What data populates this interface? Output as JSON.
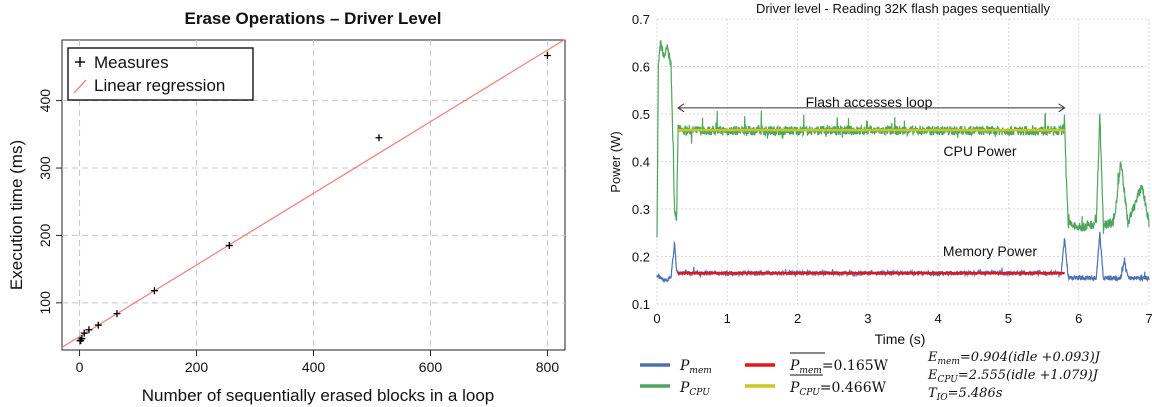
{
  "chart_data": [
    {
      "type": "scatter",
      "title": "Erase Operations – Driver Level",
      "xlabel": "Number of sequentially erased blocks in a loop",
      "ylabel": "Execution time (ms)",
      "xlim": [
        -30,
        830
      ],
      "ylim": [
        30,
        490
      ],
      "xticks": [
        0,
        200,
        400,
        600,
        800
      ],
      "yticks": [
        100,
        200,
        300,
        400
      ],
      "grid": true,
      "legend_position": "top-left",
      "series": [
        {
          "name": "Measures",
          "marker": "+",
          "color": "#000000",
          "x": [
            1,
            2,
            4,
            8,
            16,
            32,
            64,
            128,
            256,
            512,
            800
          ],
          "y": [
            44,
            44,
            47,
            55,
            60,
            67,
            84,
            118,
            185,
            345,
            467
          ]
        },
        {
          "name": "Linear regression",
          "type": "line",
          "color": "#f08080",
          "x": [
            -30,
            830
          ],
          "y": [
            34,
            491
          ]
        }
      ]
    },
    {
      "type": "line",
      "title": "Driver level - Reading 32K flash pages sequentially",
      "xlabel": "Time (s)",
      "ylabel": "Power (W)",
      "xlim": [
        0,
        7
      ],
      "ylim": [
        0.1,
        0.7
      ],
      "xticks": [
        0,
        1,
        2,
        3,
        4,
        5,
        6,
        7
      ],
      "yticks": [
        0.1,
        0.2,
        0.3,
        0.4,
        0.5,
        0.6,
        0.7
      ],
      "grid": true,
      "series": [
        {
          "name": "P_CPU",
          "color": "#4fa55f",
          "x": [
            0,
            0.02,
            0.05,
            0.1,
            0.15,
            0.2,
            0.25,
            0.28,
            0.3,
            0.35,
            1,
            2,
            3,
            4,
            5,
            5.75,
            5.8,
            5.85,
            6,
            6.25,
            6.3,
            6.35,
            6.5,
            6.6,
            6.7,
            6.9,
            7
          ],
          "y": [
            0.25,
            0.6,
            0.65,
            0.62,
            0.64,
            0.6,
            0.3,
            0.28,
            0.47,
            0.465,
            0.465,
            0.465,
            0.465,
            0.465,
            0.465,
            0.465,
            0.47,
            0.27,
            0.26,
            0.27,
            0.5,
            0.27,
            0.27,
            0.4,
            0.27,
            0.35,
            0.27
          ]
        },
        {
          "name": "P_mem",
          "color": "#4c72b0",
          "x": [
            0,
            0.1,
            0.2,
            0.25,
            0.28,
            0.3,
            1,
            2,
            3,
            4,
            5,
            5.75,
            5.8,
            5.85,
            6,
            6.25,
            6.3,
            6.35,
            6.6,
            6.65,
            6.7,
            7
          ],
          "y": [
            0.16,
            0.15,
            0.155,
            0.23,
            0.17,
            0.165,
            0.165,
            0.165,
            0.165,
            0.165,
            0.165,
            0.165,
            0.24,
            0.155,
            0.155,
            0.155,
            0.25,
            0.155,
            0.155,
            0.19,
            0.155,
            0.155
          ]
        },
        {
          "name": "mean P_mem",
          "color": "#e8141b",
          "x": [
            0.3,
            5.8
          ],
          "y": [
            0.165,
            0.165
          ]
        },
        {
          "name": "mean P_CPU",
          "color": "#c8c81e",
          "x": [
            0.3,
            5.8
          ],
          "y": [
            0.466,
            0.466
          ]
        }
      ],
      "annotations": {
        "loop_label": "Flash accesses loop",
        "loop_range": [
          0.3,
          5.8
        ],
        "loop_y": 0.513,
        "cpu_label": "CPU Power",
        "memory_label": "Memory Power"
      },
      "legend": {
        "p_mem": "P",
        "p_mem_sub": "mem",
        "p_cpu": "P",
        "p_cpu_sub": "CPU",
        "mean_mem": "P",
        "mean_mem_sub": "mem",
        "mean_mem_value": "=0.165W",
        "mean_cpu": "P",
        "mean_cpu_sub": "CPU",
        "mean_cpu_value": "=0.466W",
        "e_mem_lhs": "E",
        "e_mem_sub": "mem",
        "e_mem_rhs": "=0.904(idle +0.093)J",
        "e_cpu_lhs": "E",
        "e_cpu_sub": "CPU",
        "e_cpu_rhs": "=2.555(idle +1.079)J",
        "t_io_lhs": "T",
        "t_io_sub": "IO",
        "t_io_rhs": "=5.486s"
      }
    }
  ]
}
